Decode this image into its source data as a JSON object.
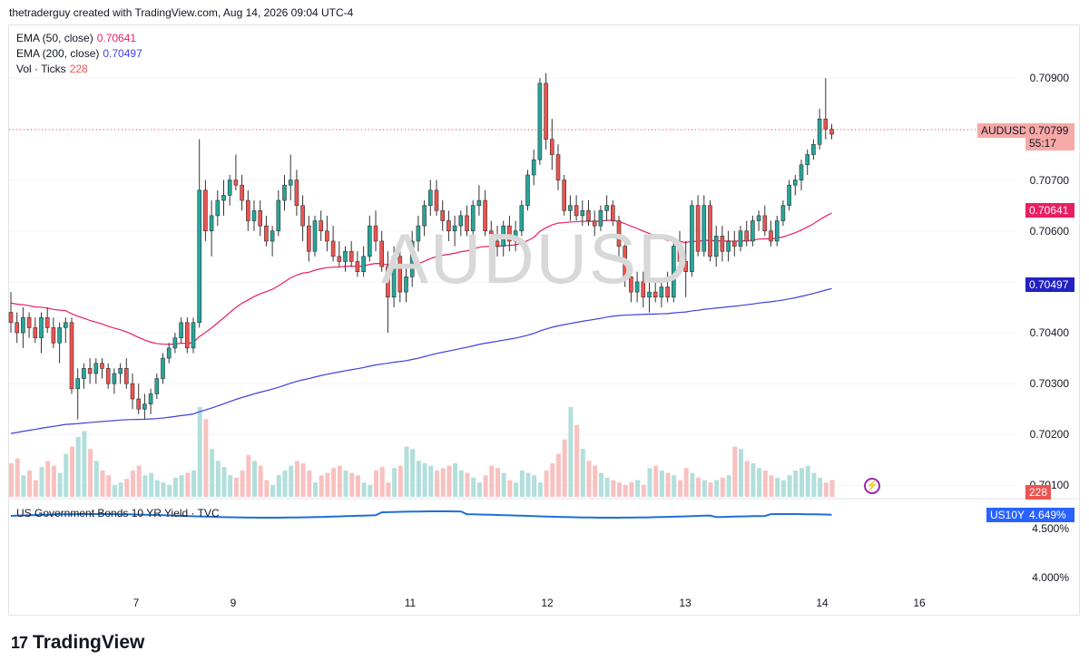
{
  "header": {
    "text": "thetraderguy created with TradingView.com, Aug 14, 2026 09:04 UTC-4"
  },
  "watermark": "AUDUSD",
  "legend": [
    {
      "label": "EMA (50, close)",
      "value": "0.70641",
      "color": "#e91e63"
    },
    {
      "label": "EMA (200, close)",
      "value": "0.70497",
      "color": "#3f3fdf"
    },
    {
      "label": "Vol · Ticks",
      "value": "228",
      "color": "#ef5350"
    }
  ],
  "pane2": {
    "label": "US Government Bonds 10 YR Yield · TVC"
  },
  "price_tags": {
    "symbol": "AUDUSD",
    "last": "0.70799",
    "countdown": "55:17",
    "ema50": "0.70641",
    "ema200": "0.70497",
    "volume": "228",
    "us10y_symbol": "US10Y",
    "us10y_value": "4.649%"
  },
  "colors": {
    "up": "#26a69a",
    "down": "#ef5350",
    "vol_up": "#b2dfdb",
    "vol_down": "#f8c1c0",
    "ema50": "#e91e63",
    "ema200": "#3f3fdf",
    "us10y": "#1e6fd9",
    "tag_red": "#f7a9a7",
    "tag_ema50": "#e91e63",
    "tag_ema200": "#2121c4",
    "tag_us10y": "#2962ff"
  },
  "icons": {
    "alert": "lightning-icon",
    "brand": "tradingview-logo"
  },
  "brand": "TradingView",
  "chart_data": {
    "type": "candlestick",
    "symbol": "AUDUSD",
    "price_axis": [
      "0.70900",
      "0.70800",
      "0.70700",
      "0.70600",
      "0.70500",
      "0.70400",
      "0.70300",
      "0.70200",
      "0.70100"
    ],
    "price_range": [
      0.7009,
      0.7093
    ],
    "time_axis": [
      "7",
      "9",
      "11",
      "12",
      "13",
      "14",
      "16"
    ],
    "us10y_axis": [
      "4.500%",
      "4.000%"
    ],
    "last_price": 0.70799,
    "ema50_last": 0.70641,
    "ema200_last": 0.70497,
    "us10y_last": 4.649,
    "vol_last": 228,
    "candles": [
      [
        0.7044,
        0.7048,
        0.704,
        0.7042
      ],
      [
        0.7042,
        0.7044,
        0.7038,
        0.704
      ],
      [
        0.704,
        0.7045,
        0.7037,
        0.7043
      ],
      [
        0.7043,
        0.7044,
        0.7039,
        0.7041
      ],
      [
        0.7041,
        0.7043,
        0.7038,
        0.7039
      ],
      [
        0.7039,
        0.7044,
        0.7036,
        0.7043
      ],
      [
        0.7043,
        0.7045,
        0.704,
        0.7041
      ],
      [
        0.7041,
        0.7043,
        0.7037,
        0.7038
      ],
      [
        0.7038,
        0.7042,
        0.7034,
        0.7041
      ],
      [
        0.7041,
        0.7043,
        0.7038,
        0.7042
      ],
      [
        0.7042,
        0.7043,
        0.7028,
        0.7029
      ],
      [
        0.7029,
        0.7033,
        0.7023,
        0.7031
      ],
      [
        0.7031,
        0.7034,
        0.7029,
        0.7033
      ],
      [
        0.7033,
        0.7035,
        0.703,
        0.7032
      ],
      [
        0.7032,
        0.7035,
        0.703,
        0.7034
      ],
      [
        0.7034,
        0.7035,
        0.7031,
        0.7033
      ],
      [
        0.7033,
        0.7034,
        0.7029,
        0.703
      ],
      [
        0.703,
        0.7033,
        0.7028,
        0.7032
      ],
      [
        0.7032,
        0.7034,
        0.703,
        0.7033
      ],
      [
        0.7033,
        0.7035,
        0.7029,
        0.703
      ],
      [
        0.703,
        0.7032,
        0.7025,
        0.7027
      ],
      [
        0.7027,
        0.703,
        0.7024,
        0.7025
      ],
      [
        0.7025,
        0.7028,
        0.7023,
        0.7026
      ],
      [
        0.7026,
        0.7029,
        0.7024,
        0.7028
      ],
      [
        0.7028,
        0.7032,
        0.7027,
        0.7031
      ],
      [
        0.7031,
        0.7036,
        0.703,
        0.7035
      ],
      [
        0.7035,
        0.7038,
        0.7034,
        0.7037
      ],
      [
        0.7037,
        0.704,
        0.7036,
        0.7039
      ],
      [
        0.7039,
        0.7043,
        0.7038,
        0.7042
      ],
      [
        0.7042,
        0.7043,
        0.7036,
        0.7037
      ],
      [
        0.7037,
        0.7043,
        0.7036,
        0.7042
      ],
      [
        0.7042,
        0.7078,
        0.7041,
        0.7068
      ],
      [
        0.7068,
        0.707,
        0.7058,
        0.706
      ],
      [
        0.706,
        0.7066,
        0.7055,
        0.7063
      ],
      [
        0.7063,
        0.7068,
        0.7061,
        0.7066
      ],
      [
        0.7066,
        0.707,
        0.7063,
        0.7067
      ],
      [
        0.7067,
        0.7071,
        0.7065,
        0.707
      ],
      [
        0.707,
        0.7075,
        0.7068,
        0.7069
      ],
      [
        0.7069,
        0.7071,
        0.7064,
        0.7066
      ],
      [
        0.7066,
        0.7068,
        0.706,
        0.7062
      ],
      [
        0.7062,
        0.7066,
        0.706,
        0.7064
      ],
      [
        0.7064,
        0.7066,
        0.7059,
        0.7061
      ],
      [
        0.7061,
        0.7063,
        0.7057,
        0.7058
      ],
      [
        0.7058,
        0.7061,
        0.7055,
        0.706
      ],
      [
        0.706,
        0.7068,
        0.7059,
        0.7066
      ],
      [
        0.7066,
        0.7071,
        0.7064,
        0.7069
      ],
      [
        0.7069,
        0.7075,
        0.7066,
        0.707
      ],
      [
        0.707,
        0.7072,
        0.7063,
        0.7065
      ],
      [
        0.7065,
        0.7067,
        0.7058,
        0.7061
      ],
      [
        0.7061,
        0.7063,
        0.7054,
        0.7056
      ],
      [
        0.7056,
        0.7063,
        0.7055,
        0.7062
      ],
      [
        0.7062,
        0.7064,
        0.7058,
        0.706
      ],
      [
        0.706,
        0.7063,
        0.7056,
        0.7058
      ],
      [
        0.7058,
        0.7061,
        0.7054,
        0.7055
      ],
      [
        0.7055,
        0.7058,
        0.7053,
        0.7054
      ],
      [
        0.7054,
        0.7057,
        0.7052,
        0.7056
      ],
      [
        0.7056,
        0.7058,
        0.7053,
        0.7054
      ],
      [
        0.7054,
        0.7056,
        0.7051,
        0.7052
      ],
      [
        0.7052,
        0.7057,
        0.7051,
        0.7055
      ],
      [
        0.7055,
        0.7063,
        0.7054,
        0.7061
      ],
      [
        0.7061,
        0.7064,
        0.7056,
        0.7058
      ],
      [
        0.7058,
        0.706,
        0.7052,
        0.7053
      ],
      [
        0.7053,
        0.7056,
        0.704,
        0.7047
      ],
      [
        0.7047,
        0.7057,
        0.7045,
        0.7055
      ],
      [
        0.7055,
        0.7058,
        0.7046,
        0.7048
      ],
      [
        0.7048,
        0.7053,
        0.7046,
        0.7051
      ],
      [
        0.7051,
        0.706,
        0.7049,
        0.7058
      ],
      [
        0.7058,
        0.7063,
        0.7056,
        0.7061
      ],
      [
        0.7061,
        0.7066,
        0.7059,
        0.7065
      ],
      [
        0.7065,
        0.707,
        0.7063,
        0.7068
      ],
      [
        0.7068,
        0.707,
        0.7063,
        0.7064
      ],
      [
        0.7064,
        0.7066,
        0.706,
        0.7062
      ],
      [
        0.7062,
        0.7064,
        0.7058,
        0.706
      ],
      [
        0.706,
        0.7063,
        0.7057,
        0.7061
      ],
      [
        0.7061,
        0.7064,
        0.7059,
        0.7063
      ],
      [
        0.7063,
        0.7065,
        0.7059,
        0.706
      ],
      [
        0.706,
        0.7066,
        0.7059,
        0.7065
      ],
      [
        0.7065,
        0.7069,
        0.7063,
        0.7066
      ],
      [
        0.7066,
        0.7068,
        0.7059,
        0.706
      ],
      [
        0.706,
        0.7062,
        0.7056,
        0.7058
      ],
      [
        0.7058,
        0.7061,
        0.7055,
        0.7057
      ],
      [
        0.7057,
        0.7062,
        0.7055,
        0.7061
      ],
      [
        0.7061,
        0.7063,
        0.7056,
        0.7058
      ],
      [
        0.7058,
        0.7062,
        0.7056,
        0.706
      ],
      [
        0.706,
        0.7066,
        0.7059,
        0.7065
      ],
      [
        0.7065,
        0.7072,
        0.7064,
        0.7071
      ],
      [
        0.7071,
        0.7076,
        0.7069,
        0.7074
      ],
      [
        0.7074,
        0.709,
        0.7073,
        0.7089
      ],
      [
        0.7089,
        0.7091,
        0.7076,
        0.7078
      ],
      [
        0.7078,
        0.7082,
        0.7072,
        0.7075
      ],
      [
        0.7075,
        0.7077,
        0.7068,
        0.707
      ],
      [
        0.707,
        0.7071,
        0.7063,
        0.7064
      ],
      [
        0.7064,
        0.7067,
        0.7062,
        0.7065
      ],
      [
        0.7065,
        0.7067,
        0.7062,
        0.7063
      ],
      [
        0.7063,
        0.7066,
        0.7061,
        0.7064
      ],
      [
        0.7064,
        0.7066,
        0.7061,
        0.7062
      ],
      [
        0.7062,
        0.7064,
        0.7059,
        0.7061
      ],
      [
        0.7061,
        0.7065,
        0.706,
        0.7064
      ],
      [
        0.7064,
        0.7067,
        0.7062,
        0.7065
      ],
      [
        0.7065,
        0.7066,
        0.7061,
        0.7062
      ],
      [
        0.7062,
        0.7063,
        0.7055,
        0.7057
      ],
      [
        0.7057,
        0.7059,
        0.7049,
        0.7051
      ],
      [
        0.7051,
        0.7053,
        0.7046,
        0.7048
      ],
      [
        0.7048,
        0.7052,
        0.7046,
        0.705
      ],
      [
        0.705,
        0.7052,
        0.7045,
        0.7047
      ],
      [
        0.7047,
        0.705,
        0.7044,
        0.7048
      ],
      [
        0.7048,
        0.705,
        0.7046,
        0.7047
      ],
      [
        0.7047,
        0.705,
        0.7045,
        0.7049
      ],
      [
        0.7049,
        0.7052,
        0.7046,
        0.7047
      ],
      [
        0.7047,
        0.7058,
        0.7046,
        0.7057
      ],
      [
        0.7057,
        0.706,
        0.7052,
        0.7054
      ],
      [
        0.7054,
        0.7058,
        0.7047,
        0.7052
      ],
      [
        0.7052,
        0.7066,
        0.7051,
        0.7065
      ],
      [
        0.7065,
        0.7067,
        0.7055,
        0.7056
      ],
      [
        0.7056,
        0.7067,
        0.7055,
        0.7065
      ],
      [
        0.7065,
        0.7066,
        0.7054,
        0.7055
      ],
      [
        0.7055,
        0.7061,
        0.7053,
        0.7059
      ],
      [
        0.7059,
        0.7061,
        0.7054,
        0.7056
      ],
      [
        0.7056,
        0.706,
        0.7054,
        0.7058
      ],
      [
        0.7058,
        0.706,
        0.7055,
        0.7057
      ],
      [
        0.7057,
        0.7061,
        0.7056,
        0.706
      ],
      [
        0.706,
        0.7062,
        0.7057,
        0.7058
      ],
      [
        0.7058,
        0.7063,
        0.7057,
        0.7062
      ],
      [
        0.7062,
        0.7064,
        0.706,
        0.7063
      ],
      [
        0.7063,
        0.7065,
        0.7059,
        0.706
      ],
      [
        0.706,
        0.7062,
        0.7057,
        0.7058
      ],
      [
        0.7058,
        0.7063,
        0.7057,
        0.7062
      ],
      [
        0.7062,
        0.7066,
        0.7061,
        0.7065
      ],
      [
        0.7065,
        0.707,
        0.7064,
        0.7069
      ],
      [
        0.7069,
        0.7071,
        0.7067,
        0.707
      ],
      [
        0.707,
        0.7074,
        0.7068,
        0.7073
      ],
      [
        0.7073,
        0.7076,
        0.7071,
        0.7075
      ],
      [
        0.7075,
        0.7078,
        0.7074,
        0.7077
      ],
      [
        0.7077,
        0.7084,
        0.7076,
        0.7082
      ],
      [
        0.7082,
        0.709,
        0.7078,
        0.708
      ],
      [
        0.708,
        0.7081,
        0.7078,
        0.7079
      ]
    ],
    "volume": [
      0.28,
      0.32,
      0.18,
      0.22,
      0.14,
      0.25,
      0.3,
      0.26,
      0.2,
      0.36,
      0.42,
      0.5,
      0.55,
      0.4,
      0.3,
      0.22,
      0.18,
      0.1,
      0.12,
      0.15,
      0.22,
      0.26,
      0.18,
      0.2,
      0.14,
      0.12,
      0.1,
      0.16,
      0.18,
      0.2,
      0.22,
      0.75,
      0.65,
      0.4,
      0.3,
      0.25,
      0.18,
      0.16,
      0.22,
      0.35,
      0.3,
      0.26,
      0.14,
      0.1,
      0.18,
      0.22,
      0.26,
      0.3,
      0.28,
      0.22,
      0.12,
      0.18,
      0.2,
      0.24,
      0.26,
      0.22,
      0.2,
      0.18,
      0.12,
      0.1,
      0.22,
      0.25,
      0.12,
      0.24,
      0.26,
      0.42,
      0.4,
      0.3,
      0.28,
      0.26,
      0.22,
      0.24,
      0.26,
      0.28,
      0.22,
      0.2,
      0.16,
      0.12,
      0.18,
      0.26,
      0.24,
      0.2,
      0.14,
      0.12,
      0.22,
      0.2,
      0.18,
      0.12,
      0.22,
      0.28,
      0.36,
      0.48,
      0.75,
      0.6,
      0.4,
      0.3,
      0.26,
      0.2,
      0.16,
      0.14,
      0.12,
      0.1,
      0.12,
      0.14,
      0.1,
      0.24,
      0.26,
      0.22,
      0.2,
      0.18,
      0.14,
      0.24,
      0.2,
      0.16,
      0.14,
      0.12,
      0.14,
      0.16,
      0.18,
      0.42,
      0.4,
      0.3,
      0.28,
      0.24,
      0.22,
      0.18,
      0.16,
      0.14,
      0.18,
      0.22,
      0.24,
      0.26,
      0.2,
      0.16,
      0.12,
      0.14,
      0.18,
      0.2,
      0.22,
      0.34
    ]
  }
}
